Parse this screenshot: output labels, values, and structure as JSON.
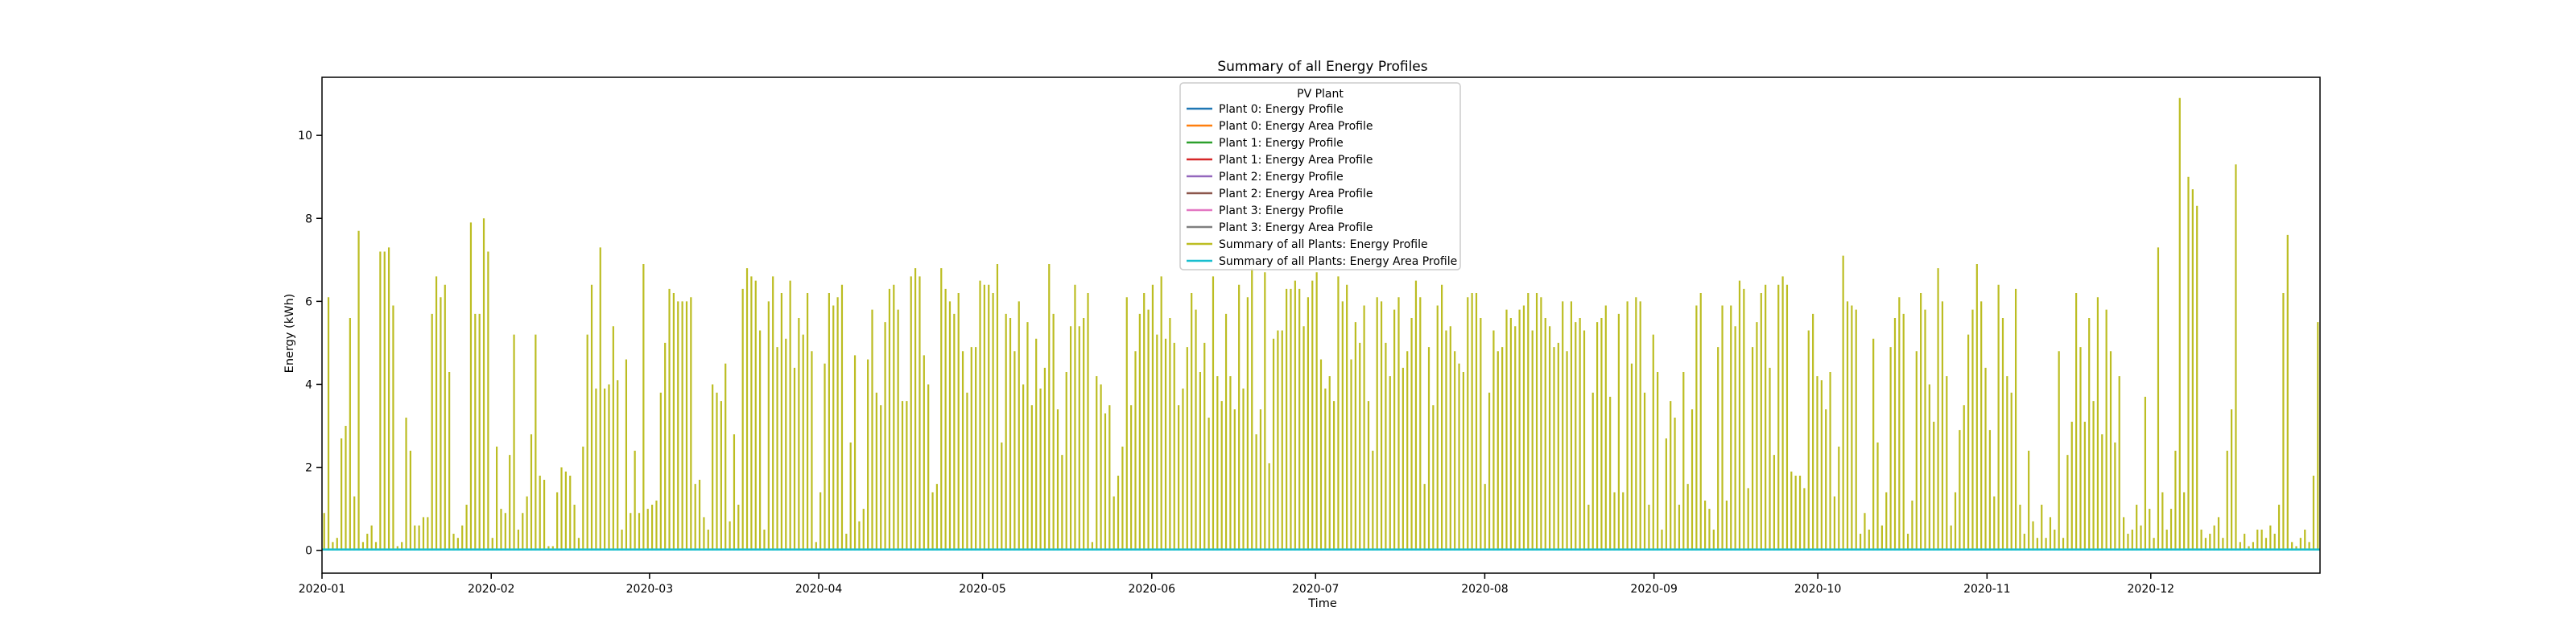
{
  "chart_data": {
    "type": "line",
    "title": "Summary of all Energy Profiles",
    "xlabel": "Time",
    "ylabel": "Energy (kWh)",
    "x_range": [
      "2020-01-01",
      "2021-01-01"
    ],
    "ylim": [
      -0.55,
      11.4
    ],
    "y_ticks": [
      0,
      2,
      4,
      6,
      8,
      10
    ],
    "x_ticks": [
      {
        "date": "2020-01-01",
        "label": "2020-01"
      },
      {
        "date": "2020-02-01",
        "label": "2020-02"
      },
      {
        "date": "2020-03-01",
        "label": "2020-03"
      },
      {
        "date": "2020-04-01",
        "label": "2020-04"
      },
      {
        "date": "2020-05-01",
        "label": "2020-05"
      },
      {
        "date": "2020-06-01",
        "label": "2020-06"
      },
      {
        "date": "2020-07-01",
        "label": "2020-07"
      },
      {
        "date": "2020-08-01",
        "label": "2020-08"
      },
      {
        "date": "2020-09-01",
        "label": "2020-09"
      },
      {
        "date": "2020-10-01",
        "label": "2020-10"
      },
      {
        "date": "2020-11-01",
        "label": "2020-11"
      },
      {
        "date": "2020-12-01",
        "label": "2020-12"
      }
    ],
    "grid": false,
    "legend": {
      "title": "PV Plant",
      "placement": "top-center"
    },
    "series": [
      {
        "name": "Plant 0:  Energy Profile",
        "color": "#1f77b4",
        "values": []
      },
      {
        "name": "Plant 0:  Energy Area Profile",
        "color": "#ff7f0e",
        "values": []
      },
      {
        "name": "Plant 1:  Energy Profile",
        "color": "#2ca02c",
        "values": []
      },
      {
        "name": "Plant 1:  Energy Area Profile",
        "color": "#d62728",
        "values": []
      },
      {
        "name": "Plant 2:  Energy Profile",
        "color": "#9467bd",
        "values": []
      },
      {
        "name": "Plant 2:  Energy Area Profile",
        "color": "#8c564b",
        "values": []
      },
      {
        "name": "Plant 3:  Energy Profile",
        "color": "#e377c2",
        "values": []
      },
      {
        "name": "Plant 3:  Energy Area Profile",
        "color": "#7f7f7f",
        "values": []
      },
      {
        "name": "Summary of all Plants:  Energy Profile",
        "color": "#bcbd22",
        "values": [
          0.9,
          6.1,
          0.2,
          0.3,
          2.7,
          3.0,
          5.6,
          1.3,
          7.7,
          0.2,
          0.4,
          0.6,
          0.2,
          7.2,
          7.2,
          7.3,
          5.9,
          0.1,
          0.2,
          3.2,
          2.4,
          0.6,
          0.6,
          0.8,
          0.8,
          5.7,
          6.6,
          6.1,
          6.4,
          4.3,
          0.4,
          0.3,
          0.6,
          1.1,
          7.9,
          5.7,
          5.7,
          8.0,
          7.2,
          0.3,
          2.5,
          1.0,
          0.9,
          2.3,
          5.2,
          0.5,
          0.9,
          1.3,
          2.8,
          5.2,
          1.8,
          1.7,
          0.1,
          0.1,
          1.4,
          2.0,
          1.9,
          1.8,
          1.1,
          0.3,
          2.5,
          5.2,
          6.4,
          3.9,
          7.3,
          3.9,
          4.0,
          5.4,
          4.1,
          0.5,
          4.6,
          0.9,
          2.4,
          0.9,
          6.9,
          1.0,
          1.1,
          1.2,
          3.8,
          5.0,
          6.3,
          6.2,
          6.0,
          6.0,
          6.0,
          6.1,
          1.6,
          1.7,
          0.8,
          0.5,
          4.0,
          3.8,
          3.6,
          4.5,
          0.7,
          2.8,
          1.1,
          6.3,
          6.8,
          6.6,
          6.5,
          5.3,
          0.5,
          6.0,
          6.6,
          4.9,
          6.2,
          5.1,
          6.5,
          4.4,
          5.6,
          5.2,
          6.2,
          4.8,
          0.2,
          1.4,
          4.5,
          6.2,
          5.9,
          6.1,
          6.4,
          0.4,
          2.6,
          4.7,
          0.7,
          1.0,
          4.6,
          5.8,
          3.8,
          3.5,
          5.5,
          6.3,
          6.4,
          5.8,
          3.6,
          3.6,
          6.6,
          6.8,
          6.6,
          4.7,
          4.0,
          1.4,
          1.6,
          6.8,
          6.3,
          6.0,
          5.7,
          6.2,
          4.8,
          3.8,
          4.9,
          4.9,
          6.5,
          6.4,
          6.4,
          6.2,
          6.9,
          2.6,
          5.7,
          5.6,
          4.8,
          6.0,
          4.0,
          5.5,
          3.5,
          5.1,
          3.9,
          4.4,
          6.9,
          5.7,
          3.4,
          2.3,
          4.3,
          5.4,
          6.4,
          5.4,
          5.6,
          6.2,
          0.2,
          4.2,
          4.0,
          3.3,
          3.5,
          1.3,
          1.8,
          2.5,
          6.1,
          3.5,
          4.8,
          5.7,
          6.2,
          5.8,
          6.4,
          5.2,
          6.6,
          5.1,
          5.6,
          5.0,
          3.5,
          3.9,
          4.9,
          6.2,
          5.8,
          4.3,
          5.0,
          3.2,
          6.6,
          4.2,
          3.6,
          5.7,
          4.2,
          3.4,
          6.4,
          3.9,
          6.1,
          6.8,
          2.8,
          3.4,
          6.7,
          2.1,
          5.1,
          5.3,
          5.3,
          6.3,
          6.3,
          6.5,
          6.3,
          5.4,
          6.1,
          6.5,
          6.7,
          4.6,
          3.9,
          4.2,
          3.6,
          6.6,
          6.0,
          6.4,
          4.6,
          5.5,
          5.0,
          5.9,
          3.6,
          2.4,
          6.1,
          6.0,
          5.0,
          4.2,
          5.8,
          6.1,
          4.4,
          4.8,
          5.6,
          6.5,
          6.1,
          1.6,
          4.9,
          3.5,
          5.9,
          6.4,
          5.3,
          5.4,
          4.8,
          4.5,
          4.3,
          6.1,
          6.2,
          6.2,
          5.6,
          1.6,
          3.8,
          5.3,
          4.8,
          4.9,
          5.8,
          5.6,
          5.4,
          5.8,
          5.9,
          6.2,
          5.3,
          6.2,
          6.1,
          5.6,
          5.4,
          4.9,
          5.0,
          6.0,
          4.8,
          6.0,
          5.5,
          5.6,
          5.3,
          1.1,
          3.8,
          5.5,
          5.6,
          5.9,
          3.7,
          1.4,
          5.7,
          1.4,
          6.0,
          4.5,
          6.1,
          6.0,
          3.8,
          1.1,
          5.2,
          4.3,
          0.5,
          2.7,
          3.6,
          3.2,
          1.1,
          4.3,
          1.6,
          3.4,
          5.9,
          6.2,
          1.2,
          1.0,
          0.5,
          4.9,
          5.9,
          1.2,
          5.9,
          5.4,
          6.5,
          6.3,
          1.5,
          4.9,
          5.5,
          6.2,
          6.4,
          4.4,
          2.3,
          6.4,
          6.6,
          6.4,
          1.9,
          1.8,
          1.8,
          1.5,
          5.3,
          5.7,
          4.2,
          4.1,
          3.4,
          4.3,
          1.3,
          2.5,
          7.1,
          6.0,
          5.9,
          5.8,
          0.4,
          0.9,
          0.5,
          5.1,
          2.6,
          0.6,
          1.4,
          4.9,
          5.6,
          6.1,
          5.7,
          0.4,
          1.2,
          4.8,
          6.2,
          5.8,
          4.0,
          3.1,
          6.8,
          6.0,
          4.2,
          0.6,
          1.4,
          2.9,
          3.5,
          5.2,
          5.8,
          6.9,
          6.0,
          4.4,
          2.9,
          1.3,
          6.4,
          5.6,
          4.2,
          3.8,
          6.3,
          1.1,
          0.4,
          2.4,
          0.7,
          0.3,
          1.1,
          0.3,
          0.8,
          0.5,
          4.8,
          0.3,
          2.3,
          3.1,
          6.2,
          4.9,
          3.1,
          5.6,
          3.6,
          6.1,
          2.8,
          5.8,
          4.8,
          2.6,
          4.2,
          0.8,
          0.4,
          0.5,
          1.1,
          0.6,
          3.7,
          1.0,
          0.3,
          7.3,
          1.4,
          0.5,
          1.0,
          2.4,
          10.9,
          1.4,
          9.0,
          8.7,
          8.3,
          0.5,
          0.3,
          0.4,
          0.6,
          0.8,
          0.3,
          2.4,
          3.4,
          9.3,
          0.2,
          0.4,
          0.1,
          0.2,
          0.5,
          0.5,
          0.3,
          0.6,
          0.4,
          1.1,
          6.2,
          7.6,
          0.2,
          0.1,
          0.3,
          0.5,
          0.2,
          1.8,
          5.5
        ]
      },
      {
        "name": "Summary of all Plants:  Energy Area Profile",
        "color": "#17becf",
        "values": [
          0.02
        ]
      }
    ]
  }
}
